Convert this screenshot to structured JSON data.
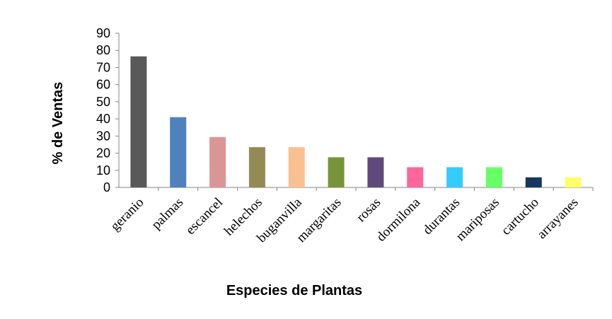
{
  "chart_data": {
    "type": "bar",
    "title": "",
    "xlabel": "Especies de Plantas",
    "ylabel": "% de Ventas",
    "ylim": [
      0,
      90
    ],
    "yticks": [
      0,
      10,
      20,
      30,
      40,
      50,
      60,
      70,
      80,
      90
    ],
    "grid": false,
    "legend": "none",
    "categories": [
      "geranio",
      "palmas",
      "escancel",
      "helechos",
      "buganvilla",
      "margaritas",
      "rosas",
      "dormilona",
      "durantas",
      "mariposas",
      "cartucho",
      "arrayanes"
    ],
    "values": [
      76.5,
      41,
      29.4,
      23.5,
      23.5,
      17.6,
      17.6,
      11.8,
      11.8,
      11.8,
      5.9,
      5.9
    ],
    "bar_colors": [
      "#595959",
      "#4f81bd",
      "#d99694",
      "#948a54",
      "#fac090",
      "#77933c",
      "#604a7b",
      "#ff6699",
      "#33ccff",
      "#66ff66",
      "#17375e",
      "#ffff66"
    ]
  }
}
